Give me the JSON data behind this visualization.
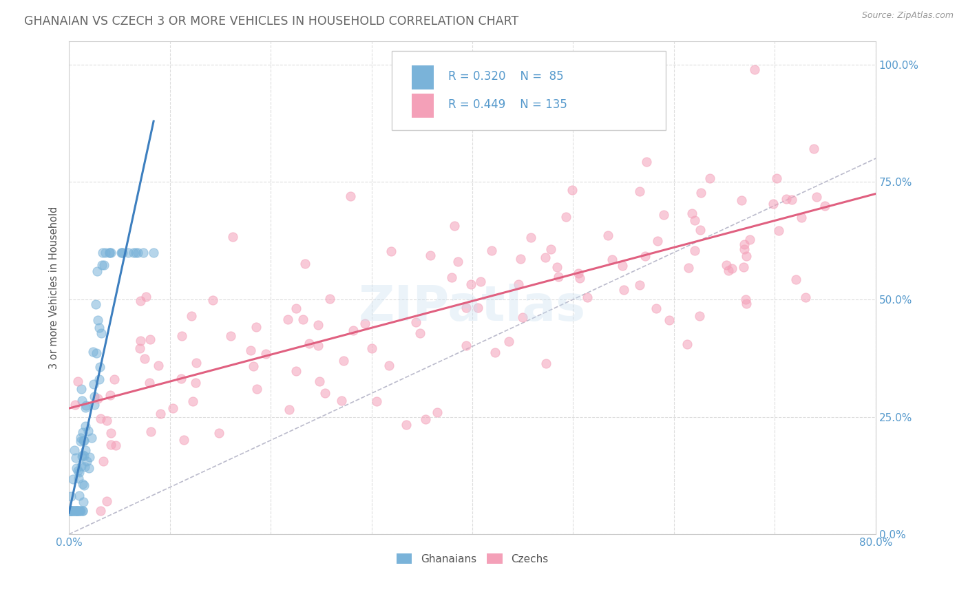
{
  "title": "GHANAIAN VS CZECH 3 OR MORE VEHICLES IN HOUSEHOLD CORRELATION CHART",
  "source": "Source: ZipAtlas.com",
  "ylabel": "3 or more Vehicles in Household",
  "xlim": [
    0.0,
    0.8
  ],
  "ylim": [
    0.0,
    1.05
  ],
  "ghanaian_R": 0.32,
  "ghanaian_N": 85,
  "czech_R": 0.449,
  "czech_N": 135,
  "ghanaian_color": "#7ab3d9",
  "czech_color": "#f4a0b8",
  "ghanaian_line_color": "#3d7fbf",
  "czech_line_color": "#e06080",
  "diagonal_color": "#bbbbcc",
  "watermark": "ZIPatlas",
  "background_color": "#ffffff",
  "plot_bg_color": "#ffffff",
  "grid_color": "#dddddd",
  "title_color": "#666666",
  "tick_color": "#5599cc",
  "ylabel_color": "#555555"
}
